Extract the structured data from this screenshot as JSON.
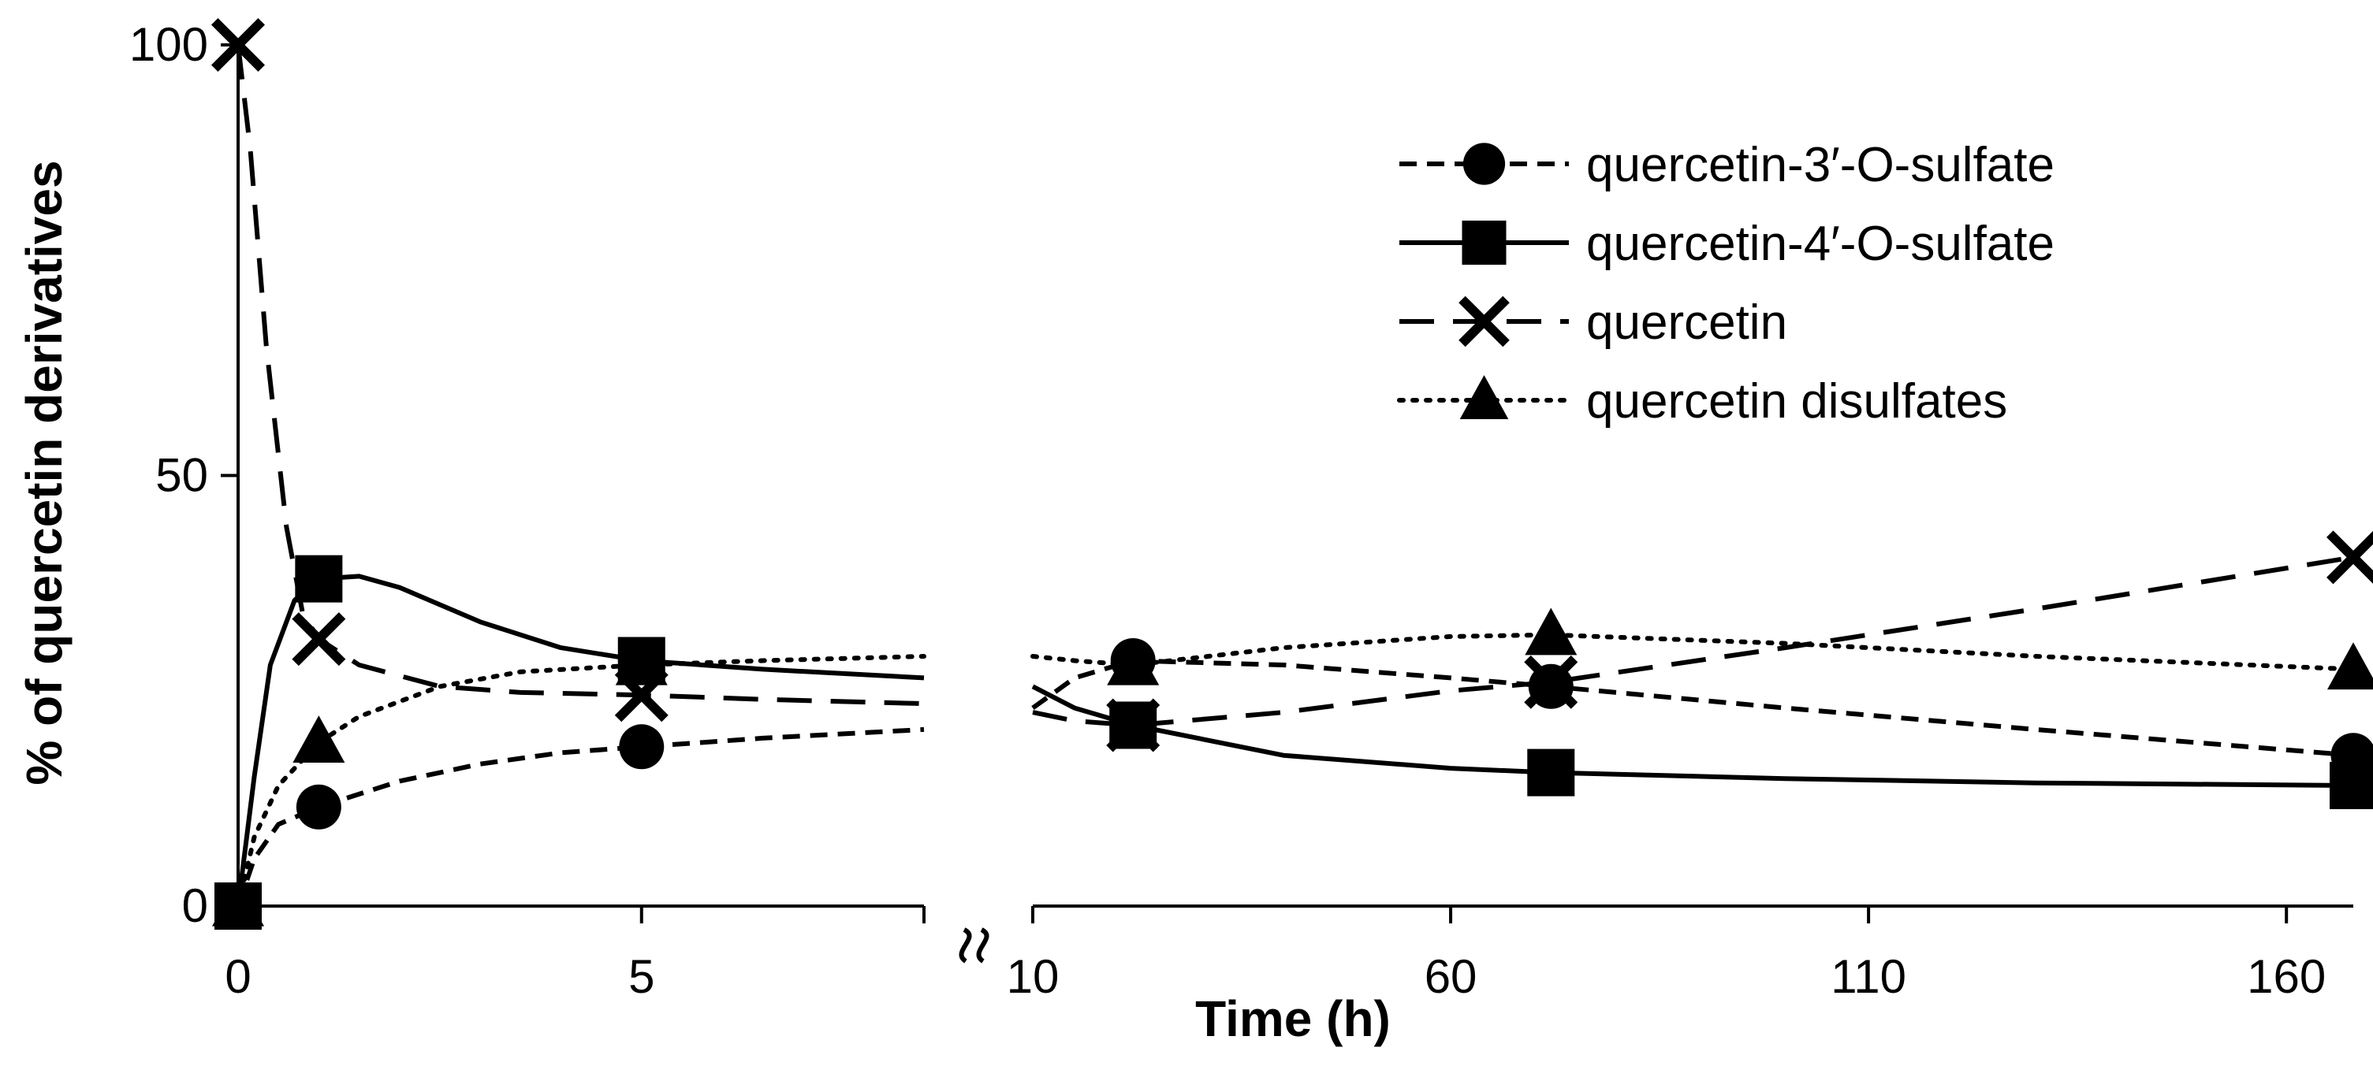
{
  "chart_data": {
    "type": "line",
    "title": "",
    "xlabel": "Time (h)",
    "ylabel": "% of quercetin derivatives",
    "ylim": [
      0,
      100
    ],
    "yticks": [
      "0",
      "50",
      "100"
    ],
    "axis_break": true,
    "left_panel": {
      "xlim": [
        0,
        8.5
      ],
      "xticks": [
        {
          "value": 0,
          "label": "0"
        },
        {
          "value": 5,
          "label": "5"
        }
      ]
    },
    "right_panel": {
      "xlim": [
        10,
        168
      ],
      "xticks": [
        {
          "value": 10,
          "label": "10"
        },
        {
          "value": 60,
          "label": "60"
        },
        {
          "value": 110,
          "label": "110"
        },
        {
          "value": 160,
          "label": "160"
        }
      ]
    },
    "legend_position": "top-right",
    "series": [
      {
        "name": "quercetin-3′-O-sulfate",
        "line_style": "short-dash",
        "marker": "circle",
        "points": [
          [
            0,
            0
          ],
          [
            1,
            11.5
          ],
          [
            5,
            18.5
          ],
          [
            22,
            28.5
          ],
          [
            72,
            25.5
          ],
          [
            168,
            17.5
          ]
        ],
        "curve_left": [
          [
            0,
            0
          ],
          [
            0.2,
            5.5
          ],
          [
            0.5,
            9.5
          ],
          [
            1,
            11.5
          ],
          [
            2,
            14.5
          ],
          [
            3,
            16.5
          ],
          [
            4,
            17.8
          ],
          [
            5,
            18.5
          ],
          [
            6.5,
            19.5
          ],
          [
            8.5,
            20.5
          ]
        ],
        "curve_right": [
          [
            10,
            23
          ],
          [
            15,
            26.5
          ],
          [
            22,
            28.5
          ],
          [
            40,
            28
          ],
          [
            60,
            26.5
          ],
          [
            72,
            25.5
          ],
          [
            100,
            23
          ],
          [
            130,
            20.5
          ],
          [
            168,
            17.5
          ]
        ]
      },
      {
        "name": "quercetin-4′-O-sulfate",
        "line_style": "solid",
        "marker": "square",
        "points": [
          [
            0,
            0
          ],
          [
            1,
            38
          ],
          [
            5,
            28.5
          ],
          [
            22,
            21
          ],
          [
            72,
            15.5
          ],
          [
            168,
            14
          ]
        ],
        "curve_left": [
          [
            0,
            0
          ],
          [
            0.2,
            15
          ],
          [
            0.4,
            28
          ],
          [
            0.7,
            35.5
          ],
          [
            1,
            38
          ],
          [
            1.5,
            38.3
          ],
          [
            2,
            37
          ],
          [
            3,
            33
          ],
          [
            4,
            30
          ],
          [
            5,
            28.5
          ],
          [
            6.5,
            27.5
          ],
          [
            8.5,
            26.5
          ]
        ],
        "curve_right": [
          [
            10,
            25.5
          ],
          [
            15,
            23
          ],
          [
            22,
            21
          ],
          [
            40,
            17.5
          ],
          [
            60,
            16
          ],
          [
            72,
            15.5
          ],
          [
            100,
            14.8
          ],
          [
            130,
            14.3
          ],
          [
            168,
            14
          ]
        ]
      },
      {
        "name": "quercetin",
        "line_style": "long-dash",
        "marker": "x",
        "points": [
          [
            0,
            100
          ],
          [
            1,
            31
          ],
          [
            5,
            24.5
          ],
          [
            22,
            21
          ],
          [
            72,
            26
          ],
          [
            168,
            40.5
          ]
        ],
        "curve_left": [
          [
            0,
            100
          ],
          [
            0.15,
            88
          ],
          [
            0.35,
            65
          ],
          [
            0.6,
            44
          ],
          [
            0.8,
            34
          ],
          [
            1,
            31
          ],
          [
            1.5,
            28
          ],
          [
            2.5,
            25.5
          ],
          [
            3.5,
            24.8
          ],
          [
            5,
            24.5
          ],
          [
            6.5,
            24
          ],
          [
            8.5,
            23.5
          ]
        ],
        "curve_right": [
          [
            10,
            22.5
          ],
          [
            15,
            21.5
          ],
          [
            22,
            21
          ],
          [
            40,
            22.5
          ],
          [
            60,
            25
          ],
          [
            72,
            26
          ],
          [
            100,
            30
          ],
          [
            130,
            34.5
          ],
          [
            168,
            40.5
          ]
        ]
      },
      {
        "name": "quercetin disulfates",
        "line_style": "dotted",
        "marker": "triangle",
        "points": [
          [
            0,
            0
          ],
          [
            1,
            19
          ],
          [
            5,
            28
          ],
          [
            22,
            28
          ],
          [
            72,
            31.5
          ],
          [
            168,
            27.5
          ]
        ],
        "curve_left": [
          [
            0,
            0
          ],
          [
            0.2,
            8
          ],
          [
            0.5,
            14
          ],
          [
            1,
            19
          ],
          [
            1.5,
            22
          ],
          [
            2.5,
            25.5
          ],
          [
            3.5,
            27.2
          ],
          [
            5,
            28
          ],
          [
            6.5,
            28.5
          ],
          [
            8.5,
            29
          ]
        ],
        "curve_right": [
          [
            10,
            29
          ],
          [
            15,
            28.5
          ],
          [
            22,
            28
          ],
          [
            40,
            30
          ],
          [
            60,
            31.3
          ],
          [
            72,
            31.5
          ],
          [
            100,
            30.5
          ],
          [
            130,
            29
          ],
          [
            168,
            27.5
          ]
        ]
      }
    ]
  }
}
